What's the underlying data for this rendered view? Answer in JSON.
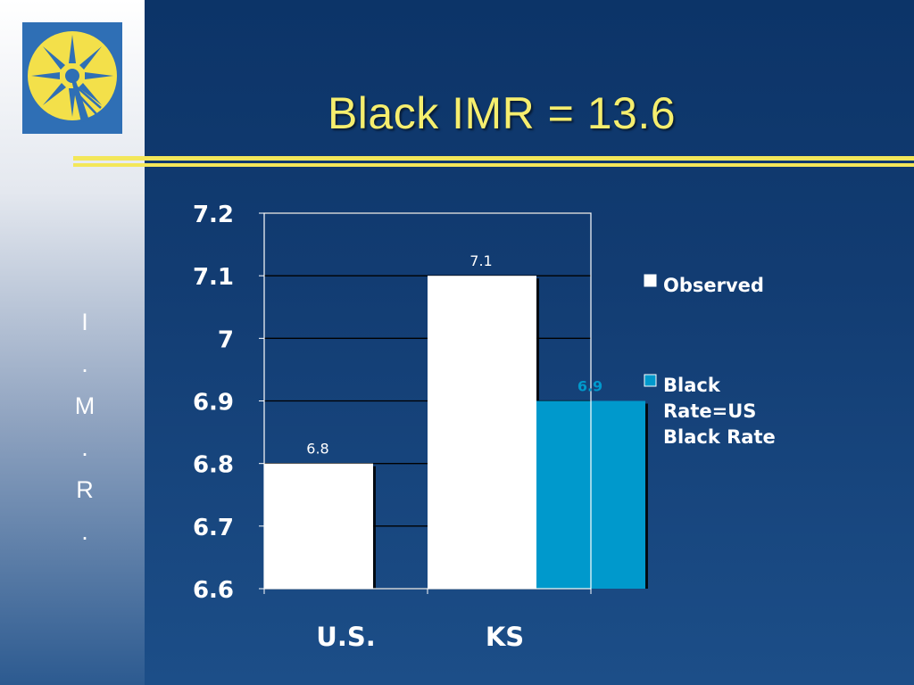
{
  "slide": {
    "title": "Black IMR = 13.6",
    "side_letters": [
      "I",
      ".",
      "M",
      ".",
      "R",
      "."
    ],
    "logo": "starburst-logo"
  },
  "colors": {
    "observed": "#ffffff",
    "black_rate": "#0099cc",
    "title": "#f6ee6e",
    "rule": "#f3e75a"
  },
  "chart_data": {
    "type": "bar",
    "categories": [
      "U.S.",
      "KS"
    ],
    "series": [
      {
        "name": "Observed",
        "values": [
          6.8,
          7.1
        ],
        "color": "#ffffff"
      },
      {
        "name": "Black Rate=US Black Rate",
        "values": [
          null,
          6.9
        ],
        "color": "#0099cc"
      }
    ],
    "data_labels": [
      [
        "6.8",
        "7.1"
      ],
      [
        null,
        "6.9"
      ]
    ],
    "legend_lines": [
      [
        "Observed"
      ],
      [
        "Black",
        "Rate=US",
        "Black Rate"
      ]
    ],
    "yticks": [
      "7.2",
      "7.1",
      "7",
      "6.9",
      "6.8",
      "6.7",
      "6.6"
    ],
    "ylim": [
      6.6,
      7.2
    ],
    "title": "",
    "xlabel": "",
    "ylabel": "",
    "grid": true,
    "legend": "right"
  }
}
